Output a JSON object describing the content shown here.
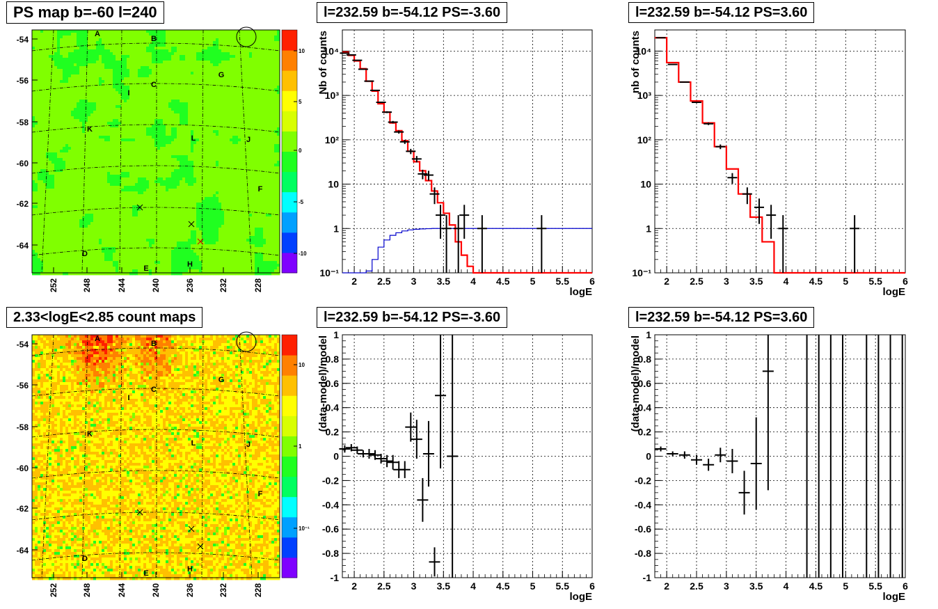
{
  "colors": {
    "model_line": "#ff0000",
    "exposure_line": "#0000cc",
    "data_points": "#000000",
    "grid": "#000000",
    "map_palette": [
      "#7f00ff",
      "#0040ff",
      "#00a0ff",
      "#00ffff",
      "#00ff60",
      "#20ff20",
      "#80ff00",
      "#d8ff00",
      "#ffff00",
      "#ffc000",
      "#ff8000",
      "#ff2000"
    ]
  },
  "chart_data": [
    {
      "id": "ps-map",
      "type": "heatmap",
      "title": "PS map b=-60 l=240",
      "xlabel": "",
      "ylabel": "",
      "x_tick_labels": [
        "252",
        "248",
        "244",
        "240",
        "236",
        "232",
        "228"
      ],
      "y_tick_labels": [
        "-54",
        "-56",
        "-58",
        "-60",
        "-62",
        "-64"
      ],
      "palette_ticks": [
        "10",
        "5",
        "0",
        "-5",
        "-10"
      ],
      "zlim": [
        -12,
        12
      ],
      "field_value": 0.3,
      "source_labels": [
        "A",
        "B",
        "C",
        "D",
        "E",
        "F",
        "G",
        "H",
        "I",
        "J",
        "K",
        "L"
      ],
      "markers": [
        "circle",
        "x",
        "x",
        "x"
      ]
    },
    {
      "id": "spectrum-neg",
      "type": "line",
      "title": "l=232.59 b=-54.12 PS=-3.60",
      "xlabel": "logE",
      "ylabel": "Nb of counts",
      "xlim": [
        1.8,
        6
      ],
      "ylim": [
        0.1,
        30000
      ],
      "log_y": true,
      "grid": true,
      "x_tick_labels": [
        "2",
        "2.5",
        "3",
        "3.5",
        "4",
        "4.5",
        "5",
        "5.5",
        "6"
      ],
      "y_tick_labels": [
        "10⁻¹",
        "1",
        "10",
        "10²",
        "10³",
        "10⁴"
      ],
      "bin_edges": [
        1.8,
        1.9,
        2.0,
        2.1,
        2.2,
        2.3,
        2.4,
        2.5,
        2.6,
        2.7,
        2.8,
        2.9,
        3.0,
        3.1,
        3.2,
        3.3,
        3.4,
        3.5,
        3.6,
        3.7,
        3.8,
        3.9,
        4.0,
        4.1,
        4.2,
        4.3,
        4.4,
        4.5,
        4.6,
        4.7,
        4.8,
        4.9,
        5.0,
        5.1,
        5.2,
        5.3,
        5.4,
        5.5,
        5.6,
        5.7,
        5.8,
        5.9,
        6.0
      ],
      "series": [
        {
          "role": "model",
          "values": [
            9500,
            8000,
            6000,
            4000,
            2100,
            1250,
            650,
            420,
            240,
            160,
            95,
            55,
            32,
            20,
            12,
            7,
            3.8,
            2.2,
            1.2,
            0.5,
            0.25,
            0.14,
            0.1,
            0.1,
            0.1,
            0.1,
            0.1,
            0.1,
            0.1,
            0.1,
            0.1,
            0.1,
            0.1,
            0.1,
            0.1,
            0.1,
            0.1,
            0.1,
            0.1,
            0.1,
            0.1,
            0.1
          ]
        },
        {
          "role": "exposure",
          "values": [
            0.1,
            0.1,
            0.1,
            0.1,
            0.11,
            0.2,
            0.38,
            0.55,
            0.7,
            0.8,
            0.88,
            0.93,
            0.96,
            0.98,
            0.99,
            1,
            1,
            1,
            1,
            1,
            1,
            1,
            1,
            1,
            1,
            1,
            1,
            1,
            1,
            1,
            1,
            1,
            1,
            1,
            1,
            1,
            1,
            1,
            1,
            1,
            1,
            1
          ]
        },
        {
          "role": "data",
          "points": [
            [
              1.84,
              9000
            ],
            [
              1.95,
              8200
            ],
            [
              2.05,
              6200
            ],
            [
              2.15,
              3900
            ],
            [
              2.25,
              2100
            ],
            [
              2.35,
              1300
            ],
            [
              2.45,
              700
            ],
            [
              2.55,
              420
            ],
            [
              2.65,
              250
            ],
            [
              2.75,
              150
            ],
            [
              2.85,
              90
            ],
            [
              2.95,
              55
            ],
            [
              3.05,
              37
            ],
            [
              3.15,
              17
            ],
            [
              3.25,
              16
            ],
            [
              3.35,
              6
            ],
            [
              3.45,
              2
            ],
            [
              3.55,
              1
            ],
            [
              3.75,
              1
            ],
            [
              3.85,
              2
            ],
            [
              4.15,
              1
            ],
            [
              5.15,
              1
            ]
          ]
        }
      ]
    },
    {
      "id": "spectrum-pos",
      "type": "line",
      "title": "l=232.59 b=-54.12 PS=3.60",
      "xlabel": "logE",
      "ylabel": "nb of counts",
      "xlim": [
        1.8,
        6
      ],
      "ylim": [
        0.1,
        30000
      ],
      "log_y": true,
      "grid": true,
      "x_tick_labels": [
        "2",
        "2.5",
        "3",
        "3.5",
        "4",
        "4.5",
        "5",
        "5.5",
        "6"
      ],
      "y_tick_labels": [
        "10⁻¹",
        "1",
        "10",
        "10²",
        "10³",
        "10⁴"
      ],
      "bin_edges": [
        1.8,
        2.0,
        2.2,
        2.4,
        2.6,
        2.8,
        3.0,
        3.2,
        3.4,
        3.6,
        3.8,
        4.0,
        4.2,
        4.4,
        4.6,
        4.8,
        5.0,
        5.2,
        5.4,
        5.6,
        5.8,
        6.0
      ],
      "series": [
        {
          "role": "model",
          "values": [
            20000,
            5500,
            2000,
            750,
            240,
            70,
            22,
            6,
            1.8,
            0.5,
            0.1,
            0.1,
            0.1,
            0.1,
            0.1,
            0.1,
            0.1,
            0.1,
            0.1,
            0.1,
            0.1
          ]
        },
        {
          "role": "data",
          "points": [
            [
              1.9,
              20000
            ],
            [
              2.1,
              5000
            ],
            [
              2.3,
              2000
            ],
            [
              2.5,
              700
            ],
            [
              2.7,
              230
            ],
            [
              2.9,
              70
            ],
            [
              3.1,
              14
            ],
            [
              3.35,
              6
            ],
            [
              3.55,
              3
            ],
            [
              3.75,
              2
            ],
            [
              3.95,
              1
            ],
            [
              5.15,
              1
            ]
          ]
        }
      ]
    },
    {
      "id": "count-map",
      "type": "heatmap",
      "title": "2.33<logE<2.85 count maps",
      "xlabel": "",
      "ylabel": "",
      "x_tick_labels": [
        "252",
        "248",
        "244",
        "240",
        "236",
        "232",
        "228"
      ],
      "y_tick_labels": [
        "-54",
        "-56",
        "-58",
        "-60",
        "-62",
        "-64"
      ],
      "palette_ticks": [
        "10",
        "1",
        "10⁻¹"
      ],
      "zlim": [
        0.05,
        40
      ],
      "log_z": true,
      "source_labels": [
        "A",
        "B",
        "C",
        "D",
        "E",
        "F",
        "G",
        "H",
        "I",
        "J",
        "K",
        "L"
      ],
      "markers": [
        "circle",
        "x",
        "x",
        "x"
      ]
    },
    {
      "id": "residual-neg",
      "type": "scatter",
      "title": "l=232.59 b=-54.12 PS=-3.60",
      "xlabel": "logE",
      "ylabel": "(data-model)/model",
      "xlim": [
        1.8,
        6
      ],
      "ylim": [
        -1,
        1
      ],
      "grid": true,
      "x_tick_labels": [
        "2",
        "2.5",
        "3",
        "3.5",
        "4",
        "4.5",
        "5",
        "5.5",
        "6"
      ],
      "y_tick_labels": [
        "-1",
        "-0.8",
        "-0.6",
        "-0.4",
        "-0.2",
        "0",
        "0.2",
        "0.4",
        "0.6",
        "0.8",
        "1"
      ],
      "points": [
        [
          1.84,
          0.06,
          0.03
        ],
        [
          1.95,
          0.07,
          0.03
        ],
        [
          2.05,
          0.05,
          0.03
        ],
        [
          2.15,
          0.02,
          0.03
        ],
        [
          2.25,
          0.02,
          0.04
        ],
        [
          2.35,
          0.01,
          0.04
        ],
        [
          2.45,
          -0.02,
          0.04
        ],
        [
          2.55,
          -0.04,
          0.05
        ],
        [
          2.65,
          -0.05,
          0.06
        ],
        [
          2.75,
          -0.11,
          0.07
        ],
        [
          2.85,
          -0.11,
          0.07
        ],
        [
          2.95,
          0.24,
          0.12
        ],
        [
          3.05,
          0.14,
          0.16
        ],
        [
          3.15,
          -0.36,
          0.18
        ],
        [
          3.25,
          0.02,
          0.27
        ],
        [
          3.35,
          -0.87,
          0.12
        ],
        [
          3.45,
          0.5,
          0.6
        ],
        [
          3.65,
          0.0,
          1.2
        ]
      ]
    },
    {
      "id": "residual-pos",
      "type": "scatter",
      "title": "l=232.59 b=-54.12 PS=3.60",
      "xlabel": "logE",
      "ylabel": "(data-model)/model",
      "xlim": [
        1.8,
        6
      ],
      "ylim": [
        -1,
        1
      ],
      "grid": true,
      "x_tick_labels": [
        "2",
        "2.5",
        "3",
        "3.5",
        "4",
        "4.5",
        "5",
        "5.5",
        "6"
      ],
      "y_tick_labels": [
        "-1",
        "-0.8",
        "-0.6",
        "-0.4",
        "-0.2",
        "0",
        "0.2",
        "0.4",
        "0.6",
        "0.8",
        "1"
      ],
      "points": [
        [
          1.9,
          0.06,
          0.02
        ],
        [
          2.1,
          0.02,
          0.02
        ],
        [
          2.3,
          0.01,
          0.03
        ],
        [
          2.5,
          -0.03,
          0.04
        ],
        [
          2.7,
          -0.07,
          0.05
        ],
        [
          2.9,
          0.01,
          0.06
        ],
        [
          3.1,
          -0.04,
          0.1
        ],
        [
          3.3,
          -0.3,
          0.18
        ],
        [
          3.5,
          -0.06,
          0.38
        ],
        [
          3.7,
          0.7,
          0.98
        ]
      ],
      "full_bars_x": [
        4.35,
        4.55,
        4.75,
        4.95,
        5.35,
        5.55,
        5.75,
        5.95
      ]
    }
  ]
}
